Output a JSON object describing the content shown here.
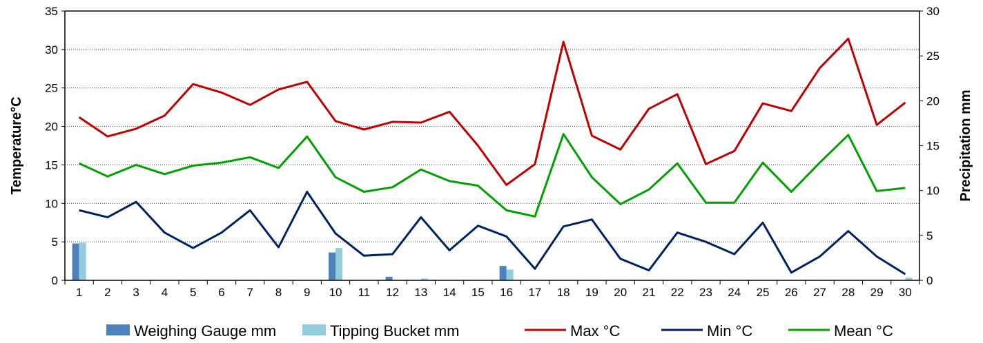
{
  "chart_data": {
    "type": "bar+line",
    "title": "",
    "x": [
      1,
      2,
      3,
      4,
      5,
      6,
      7,
      8,
      9,
      10,
      11,
      12,
      13,
      14,
      15,
      16,
      17,
      18,
      19,
      20,
      21,
      22,
      23,
      24,
      25,
      26,
      27,
      28,
      29,
      30
    ],
    "xticks": [
      "1",
      "2",
      "3",
      "4",
      "5",
      "6",
      "7",
      "8",
      "9",
      "10",
      "11",
      "12",
      "13",
      "14",
      "15",
      "16",
      "17",
      "18",
      "19",
      "20",
      "21",
      "22",
      "23",
      "24",
      "25",
      "26",
      "27",
      "28",
      "29",
      "30"
    ],
    "y_left": {
      "label": "Temperature°C",
      "range": [
        0,
        35
      ],
      "ticks": [
        "0",
        "5",
        "10",
        "15",
        "20",
        "25",
        "30",
        "35"
      ]
    },
    "y_right": {
      "label": "Precipitation mm",
      "range": [
        0,
        30
      ],
      "ticks": [
        "0",
        "5",
        "10",
        "15",
        "20",
        "25",
        "30"
      ]
    },
    "grid": "horizontal dotted",
    "legend_position": "bottom",
    "bar_series": [
      {
        "name": "Weighing Gauge mm",
        "axis": "right",
        "color": "#4f81bd",
        "values": [
          4.1,
          0,
          0,
          0,
          0,
          0,
          0,
          0,
          0,
          3.1,
          0,
          0.4,
          0,
          0,
          0,
          1.6,
          0,
          0,
          0,
          0,
          0,
          0,
          0,
          0,
          0,
          0,
          0,
          0,
          0,
          0
        ]
      },
      {
        "name": "Tipping Bucket mm",
        "axis": "right",
        "color": "#93cddd",
        "values": [
          4.2,
          0,
          0,
          0,
          0,
          0,
          0,
          0,
          0,
          3.6,
          0,
          0,
          0.2,
          0,
          0,
          1.2,
          0,
          0,
          0,
          0,
          0,
          0,
          0,
          0,
          0,
          0,
          0,
          0,
          0,
          0.3
        ]
      }
    ],
    "line_series": [
      {
        "name": "Max °C",
        "axis": "left",
        "color": "#c00000",
        "values": [
          21.2,
          18.7,
          19.7,
          21.4,
          25.5,
          24.4,
          22.8,
          24.8,
          25.8,
          20.7,
          19.6,
          20.6,
          20.5,
          21.9,
          17.5,
          12.4,
          15.1,
          31.0,
          18.8,
          17.0,
          22.3,
          24.2,
          15.1,
          16.8,
          23.0,
          22.0,
          27.6,
          31.4,
          20.2,
          23.1
        ]
      },
      {
        "name": "Min °C",
        "axis": "left",
        "color": "#002060",
        "values": [
          9.1,
          8.2,
          10.2,
          6.2,
          4.2,
          6.2,
          9.1,
          4.3,
          11.5,
          6.1,
          3.2,
          3.4,
          8.2,
          3.9,
          7.1,
          5.7,
          1.5,
          7.0,
          7.9,
          2.8,
          1.3,
          6.2,
          5.0,
          3.4,
          7.5,
          1.0,
          3.1,
          6.4,
          3.1,
          0.8
        ]
      },
      {
        "name": "Mean °C",
        "axis": "left",
        "color": "#00a000",
        "values": [
          15.2,
          13.5,
          15.0,
          13.8,
          14.9,
          15.3,
          16.0,
          14.6,
          18.7,
          13.4,
          11.5,
          12.1,
          14.4,
          12.9,
          12.3,
          9.1,
          8.3,
          19.0,
          13.4,
          9.9,
          11.8,
          15.2,
          10.1,
          10.1,
          15.3,
          11.5,
          15.3,
          18.9,
          11.6,
          12.0
        ]
      }
    ]
  }
}
